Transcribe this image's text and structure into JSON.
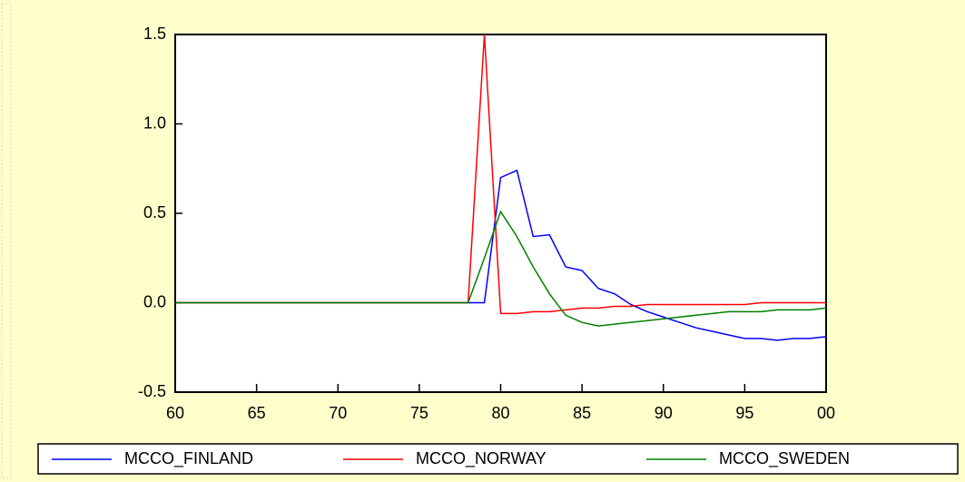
{
  "chart_data": {
    "type": "line",
    "x": [
      60,
      61,
      62,
      63,
      64,
      65,
      66,
      67,
      68,
      69,
      70,
      71,
      72,
      73,
      74,
      75,
      76,
      77,
      78,
      79,
      80,
      81,
      82,
      83,
      84,
      85,
      86,
      87,
      88,
      89,
      90,
      91,
      92,
      93,
      94,
      95,
      96,
      97,
      98,
      99,
      100
    ],
    "series": [
      {
        "name": "MCCO_FINLAND",
        "color": "#0000ff",
        "values": [
          0,
          0,
          0,
          0,
          0,
          0,
          0,
          0,
          0,
          0,
          0,
          0,
          0,
          0,
          0,
          0,
          0,
          0,
          0,
          0,
          0.7,
          0.74,
          0.37,
          0.38,
          0.2,
          0.18,
          0.08,
          0.05,
          -0.01,
          -0.05,
          -0.08,
          -0.11,
          -0.14,
          -0.16,
          -0.18,
          -0.2,
          -0.2,
          -0.21,
          -0.2,
          -0.2,
          -0.19
        ]
      },
      {
        "name": "MCCO_NORWAY",
        "color": "#ff0000",
        "values": [
          0,
          0,
          0,
          0,
          0,
          0,
          0,
          0,
          0,
          0,
          0,
          0,
          0,
          0,
          0,
          0,
          0,
          0,
          0,
          1.5,
          -0.06,
          -0.06,
          -0.05,
          -0.05,
          -0.04,
          -0.03,
          -0.03,
          -0.02,
          -0.02,
          -0.01,
          -0.01,
          -0.01,
          -0.01,
          -0.01,
          -0.01,
          -0.01,
          0,
          0,
          0,
          0,
          0
        ]
      },
      {
        "name": "MCCO_SWEDEN",
        "color": "#008000",
        "values": [
          0,
          0,
          0,
          0,
          0,
          0,
          0,
          0,
          0,
          0,
          0,
          0,
          0,
          0,
          0,
          0,
          0,
          0,
          0,
          0.25,
          0.51,
          0.37,
          0.2,
          0.05,
          -0.07,
          -0.11,
          -0.13,
          -0.12,
          -0.11,
          -0.1,
          -0.09,
          -0.08,
          -0.07,
          -0.06,
          -0.05,
          -0.05,
          -0.05,
          -0.04,
          -0.04,
          -0.04,
          -0.03
        ]
      }
    ],
    "xlim": [
      60,
      100
    ],
    "xticks": [
      60,
      65,
      70,
      75,
      80,
      85,
      90,
      95,
      {
        "value": 100,
        "label": "00"
      }
    ],
    "ylim": [
      -0.5,
      1.5
    ],
    "yticks": [
      1.5,
      {
        "value": 1,
        "label": "1.0"
      },
      0.5,
      {
        "value": 0,
        "label": "0.0"
      },
      -0.5
    ],
    "legend": "bottom"
  }
}
